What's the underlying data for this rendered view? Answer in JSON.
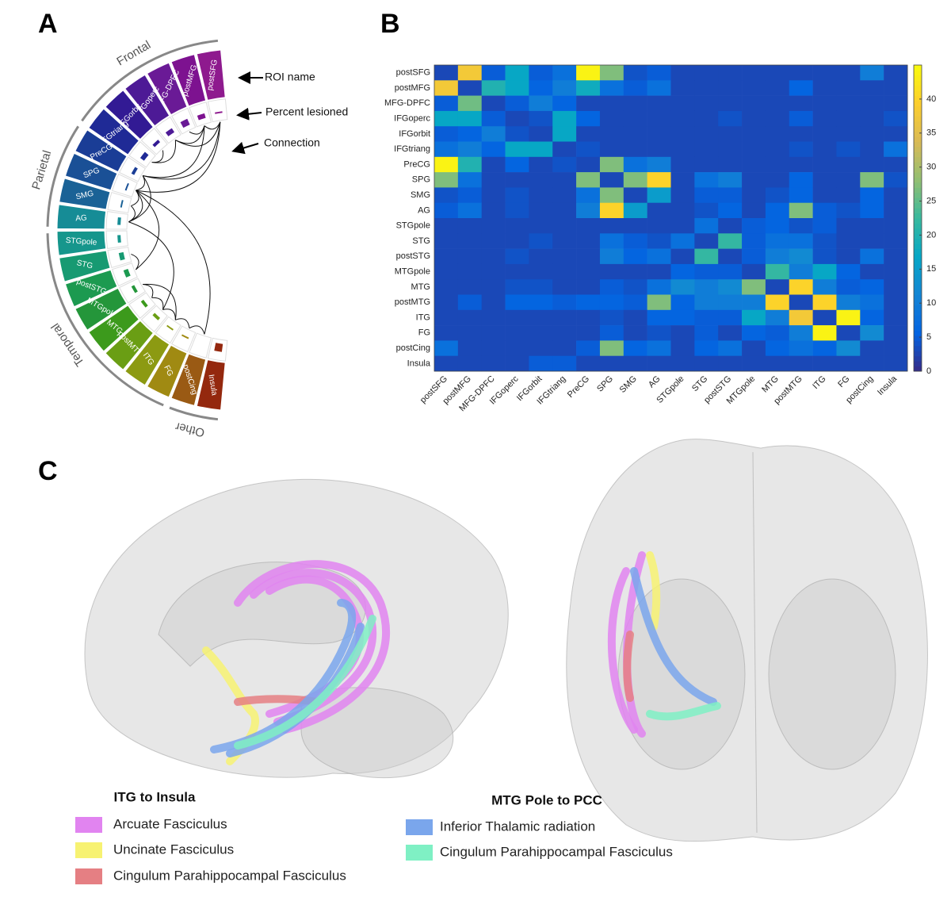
{
  "panel_labels": [
    "A",
    "B",
    "C"
  ],
  "roi_wheel": {
    "rois": [
      "postSFG",
      "postMFG",
      "MFG-DPFC",
      "IFGoperc",
      "IFGorbit",
      "IFGtriang",
      "PreCG",
      "SPG",
      "SMG",
      "AG",
      "STGpole",
      "STG",
      "postSTG",
      "MTGpole",
      "MTG",
      "postMTG",
      "ITG",
      "FG",
      "postCing",
      "Insula"
    ],
    "colors": [
      "#8e1a8e",
      "#7d1290",
      "#6a1a96",
      "#4d1a96",
      "#321a94",
      "#1f2a96",
      "#1a3d96",
      "#1a5096",
      "#1a6296",
      "#168c96",
      "#16968c",
      "#179a72",
      "#1c9a50",
      "#24963a",
      "#3c9a1c",
      "#6a9e14",
      "#8c9a12",
      "#a08a12",
      "#9a5a14",
      "#94280e"
    ],
    "percent_lesioned": [
      1,
      3,
      4,
      3,
      2,
      3,
      2,
      1,
      1,
      2,
      2,
      3,
      3,
      2,
      2,
      2,
      1,
      1,
      0,
      5
    ],
    "groups": [
      {
        "name": "Frontal",
        "span": [
          "postSFG",
          "IFGtriang"
        ]
      },
      {
        "name": "Parietal",
        "span": [
          "PreCG",
          "AG"
        ]
      },
      {
        "name": "Temporal",
        "span": [
          "STGpole",
          "FG"
        ]
      },
      {
        "name": "Other",
        "span": [
          "postCing",
          "Insula"
        ]
      }
    ],
    "connections": [
      [
        "postSFG",
        "postMFG"
      ],
      [
        "postSFG",
        "PreCG"
      ],
      [
        "postSFG",
        "SPG"
      ],
      [
        "postSFG",
        "IFGoperc"
      ],
      [
        "postMFG",
        "MFG-DPFC"
      ],
      [
        "postMFG",
        "PreCG"
      ],
      [
        "postMFG",
        "IFGoperc"
      ],
      [
        "IFGoperc",
        "IFGtriang"
      ],
      [
        "IFGorbit",
        "IFGtriang"
      ],
      [
        "PreCG",
        "SPG"
      ],
      [
        "SPG",
        "SMG"
      ],
      [
        "SPG",
        "AG"
      ],
      [
        "SPG",
        "postCing"
      ],
      [
        "AG",
        "SMG"
      ],
      [
        "AG",
        "postMTG"
      ],
      [
        "STG",
        "postSTG"
      ],
      [
        "MTGpole",
        "MTG"
      ],
      [
        "MTG",
        "postMTG"
      ],
      [
        "postMTG",
        "ITG"
      ],
      [
        "ITG",
        "FG"
      ],
      [
        "MTGpole",
        "ITG"
      ],
      [
        "FG",
        "postCing"
      ],
      [
        "PreCG",
        "AG"
      ],
      [
        "postSTG",
        "SPG"
      ]
    ],
    "annotations": [
      "ROI name",
      "Percent lesioned",
      "Connection"
    ]
  },
  "chart_data": {
    "type": "heatmap",
    "rows": [
      "postSFG",
      "postMFG",
      "MFG-DPFC",
      "IFGoperc",
      "IFGorbit",
      "IFGtriang",
      "PreCG",
      "SPG",
      "SMG",
      "AG",
      "STGpole",
      "STG",
      "postSTG",
      "MTGpole",
      "MTG",
      "postMTG",
      "ITG",
      "FG",
      "postCing",
      "Insula"
    ],
    "categories": [
      "postSFG",
      "postMFG",
      "MFG-DPFC",
      "IFGoperc",
      "IFGorbit",
      "IFGtriang",
      "PreCG",
      "SPG",
      "SMG",
      "AG",
      "STGpole",
      "STG",
      "postSTG",
      "MTGpole",
      "MTG",
      "postMTG",
      "ITG",
      "FG",
      "postCing",
      "Insula"
    ],
    "values": [
      [
        3,
        38,
        5,
        17,
        5,
        8,
        44,
        27,
        4,
        5,
        3,
        3,
        3,
        3,
        3,
        3,
        3,
        3,
        10,
        3
      ],
      [
        38,
        3,
        20,
        17,
        6,
        10,
        18,
        8,
        5,
        8,
        3,
        3,
        3,
        3,
        3,
        6,
        3,
        3,
        3,
        3
      ],
      [
        5,
        26,
        3,
        5,
        10,
        6,
        3,
        3,
        3,
        3,
        3,
        3,
        3,
        3,
        3,
        3,
        3,
        3,
        3,
        3
      ],
      [
        17,
        17,
        5,
        3,
        4,
        17,
        6,
        3,
        3,
        3,
        3,
        3,
        4,
        3,
        3,
        5,
        3,
        3,
        3,
        4
      ],
      [
        5,
        6,
        10,
        4,
        3,
        17,
        3,
        3,
        3,
        3,
        3,
        3,
        3,
        3,
        3,
        3,
        3,
        3,
        3,
        3
      ],
      [
        8,
        10,
        6,
        17,
        17,
        3,
        4,
        3,
        3,
        3,
        3,
        3,
        3,
        3,
        3,
        4,
        3,
        4,
        3,
        8
      ],
      [
        44,
        20,
        3,
        6,
        3,
        4,
        3,
        27,
        8,
        10,
        3,
        3,
        3,
        3,
        3,
        3,
        3,
        3,
        3,
        3
      ],
      [
        27,
        8,
        3,
        3,
        3,
        3,
        27,
        3,
        27,
        40,
        3,
        8,
        10,
        3,
        3,
        6,
        3,
        3,
        27,
        4
      ],
      [
        4,
        5,
        3,
        4,
        3,
        3,
        8,
        27,
        3,
        15,
        3,
        5,
        5,
        3,
        4,
        6,
        3,
        3,
        6,
        3
      ],
      [
        5,
        8,
        3,
        4,
        3,
        3,
        10,
        40,
        15,
        3,
        3,
        4,
        6,
        3,
        6,
        27,
        5,
        4,
        6,
        3
      ],
      [
        3,
        3,
        3,
        3,
        3,
        3,
        3,
        3,
        3,
        3,
        3,
        8,
        3,
        5,
        6,
        4,
        5,
        3,
        3,
        3
      ],
      [
        3,
        3,
        3,
        3,
        4,
        3,
        3,
        8,
        5,
        4,
        8,
        3,
        22,
        5,
        8,
        8,
        4,
        3,
        3,
        3
      ],
      [
        3,
        3,
        3,
        4,
        3,
        3,
        3,
        10,
        6,
        8,
        3,
        22,
        3,
        5,
        10,
        12,
        4,
        3,
        8,
        3
      ],
      [
        3,
        3,
        3,
        3,
        3,
        3,
        3,
        3,
        3,
        3,
        6,
        5,
        5,
        3,
        22,
        10,
        17,
        6,
        3,
        3
      ],
      [
        3,
        3,
        3,
        4,
        4,
        3,
        3,
        5,
        4,
        8,
        12,
        10,
        12,
        27,
        3,
        40,
        10,
        5,
        6,
        3
      ],
      [
        3,
        5,
        3,
        6,
        6,
        5,
        6,
        6,
        5,
        27,
        6,
        10,
        10,
        10,
        40,
        3,
        40,
        10,
        8,
        3
      ],
      [
        3,
        3,
        3,
        3,
        3,
        3,
        3,
        4,
        3,
        6,
        6,
        5,
        5,
        17,
        10,
        38,
        3,
        44,
        6,
        3
      ],
      [
        3,
        3,
        3,
        3,
        3,
        3,
        3,
        5,
        3,
        4,
        3,
        5,
        3,
        6,
        5,
        10,
        44,
        3,
        12,
        3
      ],
      [
        8,
        3,
        3,
        3,
        3,
        3,
        5,
        27,
        6,
        8,
        3,
        6,
        8,
        3,
        6,
        8,
        6,
        12,
        3,
        3
      ],
      [
        3,
        3,
        3,
        3,
        5,
        5,
        3,
        3,
        3,
        3,
        3,
        3,
        3,
        3,
        3,
        3,
        3,
        3,
        3,
        3
      ]
    ],
    "clim": [
      0,
      45
    ],
    "cticks": [
      0,
      5,
      10,
      15,
      20,
      25,
      30,
      35,
      40
    ],
    "colormap": "parula"
  },
  "tractography": {
    "legend": [
      {
        "title": "ITG to Insula",
        "items": [
          {
            "name": "Arcuate Fasciculus",
            "color": "#e184f0"
          },
          {
            "name": "Uncinate Fasciculus",
            "color": "#f7f272"
          },
          {
            "name": "Cingulum Parahippocampal Fasciculus",
            "color": "#e57f83"
          }
        ]
      },
      {
        "title": "MTG Pole to PCC",
        "items": [
          {
            "name": "Inferior Thalamic radiation",
            "color": "#7aa6ec"
          },
          {
            "name": "Cingulum Parahippocampal Fasciculus",
            "color": "#7ff0c4"
          }
        ]
      }
    ]
  }
}
